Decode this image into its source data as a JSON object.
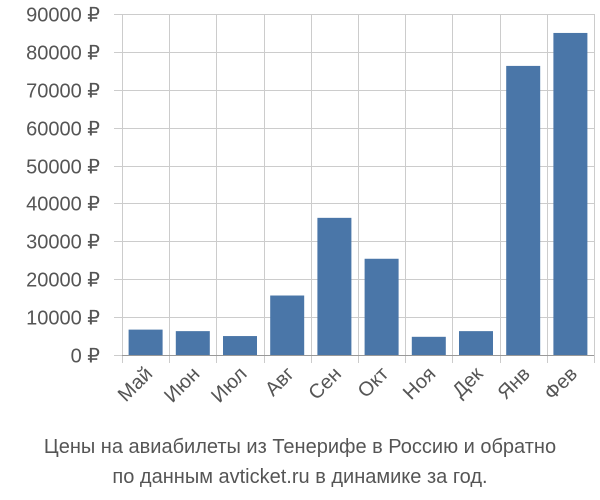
{
  "chart_data": {
    "type": "bar",
    "categories": [
      "Май",
      "Июн",
      "Июл",
      "Авг",
      "Сен",
      "Окт",
      "Ноя",
      "Дек",
      "Янв",
      "Фев"
    ],
    "values": [
      6700,
      6300,
      5000,
      15700,
      36200,
      25400,
      4800,
      6300,
      76300,
      85000
    ],
    "ylim": [
      0,
      90000
    ],
    "yticks": [
      0,
      10000,
      20000,
      30000,
      40000,
      50000,
      60000,
      70000,
      80000,
      90000
    ],
    "ytick_labels": [
      "0 ₽",
      "10000 ₽",
      "20000 ₽",
      "30000 ₽",
      "40000 ₽",
      "50000 ₽",
      "60000 ₽",
      "70000 ₽",
      "80000 ₽",
      "90000 ₽"
    ],
    "grid": true,
    "bar_color": "#4a76a8",
    "grid_color": "#cccccc",
    "caption_lines": [
      "Цены на авиабилеты из Тенерифе в Россию и обратно",
      "по данным avticket.ru в динамике за год."
    ]
  }
}
